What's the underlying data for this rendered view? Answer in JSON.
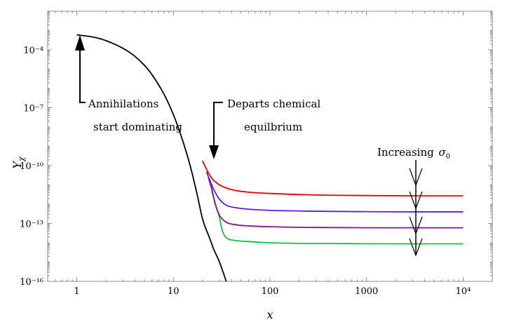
{
  "chart_data": {
    "type": "line",
    "xlabel": "x",
    "ylabel": "Y_χ",
    "x_scale": "log",
    "y_scale": "log",
    "xlim": [
      0.5,
      20000
    ],
    "ylim": [
      1e-16,
      0.01
    ],
    "x_ticks": [
      {
        "value": 1,
        "label": "1"
      },
      {
        "value": 10,
        "label": "10"
      },
      {
        "value": 100,
        "label": "100"
      },
      {
        "value": 1000,
        "label": "1000"
      },
      {
        "value": 10000,
        "label": "10⁴"
      }
    ],
    "y_ticks": [
      {
        "value": 0.0001,
        "label": "10⁻⁴"
      },
      {
        "value": 1e-07,
        "label": "10⁻⁷"
      },
      {
        "value": 1e-10,
        "label": "10⁻¹⁰"
      },
      {
        "value": 1e-13,
        "label": "10⁻¹³"
      },
      {
        "value": 1e-16,
        "label": "10⁻¹⁶"
      }
    ],
    "grid": false,
    "series": [
      {
        "color": "#000000",
        "points": [
          [
            1,
            0.0006
          ],
          [
            1.5,
            0.00045
          ],
          [
            2,
            0.0003
          ],
          [
            3,
            0.00012
          ],
          [
            4,
            4.6e-05
          ],
          [
            5,
            1.6e-05
          ],
          [
            6,
            5.2e-06
          ],
          [
            8,
            5e-07
          ],
          [
            10,
            4.4e-08
          ],
          [
            12,
            3.6e-09
          ],
          [
            15,
            9e-11
          ],
          [
            18,
            2e-12
          ],
          [
            20,
            1.8e-13
          ],
          [
            24,
            1.5e-14
          ],
          [
            26,
            5e-15
          ],
          [
            30,
            1e-15
          ],
          [
            35,
            1.1e-16
          ],
          [
            36,
            7e-17
          ]
        ]
      },
      {
        "color": "#e00000",
        "points": [
          [
            20,
            1.8e-10
          ],
          [
            22,
            6.5e-11
          ],
          [
            25,
            2.2e-11
          ],
          [
            30,
            1e-11
          ],
          [
            40,
            5.7e-12
          ],
          [
            60,
            4.2e-12
          ],
          [
            100,
            3.6e-12
          ],
          [
            300,
            3e-12
          ],
          [
            1000,
            2.8e-12
          ],
          [
            3000,
            2.7e-12
          ],
          [
            10000,
            2.7e-12
          ]
        ]
      },
      {
        "color": "#5a1ee0",
        "points": [
          [
            22,
            4.8e-11
          ],
          [
            24,
            1.6e-11
          ],
          [
            26,
            6.2e-12
          ],
          [
            30,
            1.8e-12
          ],
          [
            35,
            9e-13
          ],
          [
            45,
            6.5e-13
          ],
          [
            60,
            5.5e-13
          ],
          [
            100,
            4.8e-13
          ],
          [
            300,
            4.3e-13
          ],
          [
            1000,
            4.1e-13
          ],
          [
            3000,
            4e-13
          ],
          [
            10000,
            4e-13
          ]
        ]
      },
      {
        "color": "#8a108a",
        "points": [
          [
            23,
            2.4e-11
          ],
          [
            25,
            6e-12
          ],
          [
            27,
            1.1e-12
          ],
          [
            30,
            2.7e-13
          ],
          [
            35,
            1.2e-13
          ],
          [
            45,
            8.5e-14
          ],
          [
            60,
            7.5e-14
          ],
          [
            100,
            6.8e-14
          ],
          [
            300,
            6.2e-14
          ],
          [
            1000,
            6e-14
          ],
          [
            3000,
            6e-14
          ],
          [
            10000,
            6e-14
          ]
        ]
      },
      {
        "color": "#10c040",
        "points": [
          [
            25,
            5e-12
          ],
          [
            27,
            1.2e-12
          ],
          [
            30,
            2e-13
          ],
          [
            32,
            4.5e-14
          ],
          [
            35,
            1.9e-14
          ],
          [
            45,
            1.3e-14
          ],
          [
            60,
            1.15e-14
          ],
          [
            100,
            1e-14
          ],
          [
            300,
            9.2e-15
          ],
          [
            1000,
            8.9e-15
          ],
          [
            3000,
            8.8e-15
          ],
          [
            10000,
            8.8e-15
          ]
        ]
      }
    ],
    "annotations": [
      {
        "lines": [
          "Annihilations",
          "start dominating"
        ]
      },
      {
        "lines": [
          "Departs chemical",
          "equilbrium"
        ]
      },
      {
        "text": "Increasing",
        "symbol": "σ",
        "subscript": "0"
      }
    ]
  }
}
